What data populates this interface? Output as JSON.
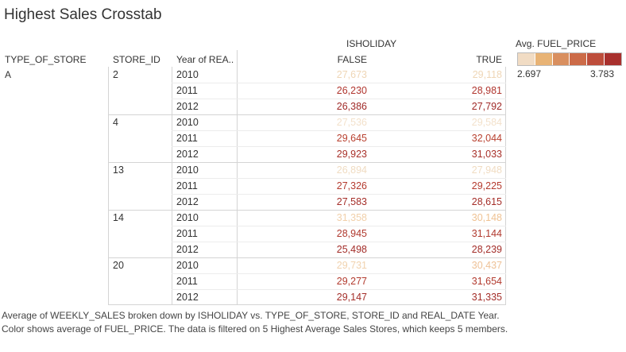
{
  "title": "Highest Sales Crosstab",
  "column_group_header": "ISHOLIDAY",
  "row_headers": [
    "TYPE_OF_STORE",
    "STORE_ID",
    "Year of REA.."
  ],
  "value_columns": [
    "FALSE",
    "TRUE"
  ],
  "legend": {
    "title": "Avg. FUEL_PRICE",
    "min_label": "2.697",
    "max_label": "3.783",
    "colors": [
      "#f1dcc4",
      "#e8b375",
      "#d98f5f",
      "#cc6b48",
      "#bd4d3b",
      "#a8302d"
    ]
  },
  "caption": "Average of WEEKLY_SALES broken down by ISHOLIDAY vs. TYPE_OF_STORE, STORE_ID and REAL_DATE Year. Color shows average of FUEL_PRICE. The data is filtered on 5 Highest Average Sales Stores, which keeps 5 members.",
  "chart_data": {
    "type": "table",
    "type_of_store": "A",
    "columns": [
      "FALSE",
      "TRUE"
    ],
    "stores": [
      {
        "store_id": "2",
        "rows": [
          {
            "year": "2010",
            "false": "27,673",
            "true": "29,118",
            "false_color": "#efd6b6",
            "true_color": "#efd6b6"
          },
          {
            "year": "2011",
            "false": "26,230",
            "true": "28,981",
            "false_color": "#b0352e",
            "true_color": "#b0352e"
          },
          {
            "year": "2012",
            "false": "26,386",
            "true": "27,792",
            "false_color": "#a02a28",
            "true_color": "#a02a28"
          }
        ]
      },
      {
        "store_id": "4",
        "rows": [
          {
            "year": "2010",
            "false": "27,536",
            "true": "29,584",
            "false_color": "#f3e1cb",
            "true_color": "#f3e1cb"
          },
          {
            "year": "2011",
            "false": "29,645",
            "true": "32,044",
            "false_color": "#b8402f",
            "true_color": "#b8402f"
          },
          {
            "year": "2012",
            "false": "29,923",
            "true": "31,033",
            "false_color": "#a83029",
            "true_color": "#a83029"
          }
        ]
      },
      {
        "store_id": "13",
        "rows": [
          {
            "year": "2010",
            "false": "26,894",
            "true": "27,948",
            "false_color": "#f0dcc2",
            "true_color": "#f0dcc2"
          },
          {
            "year": "2011",
            "false": "27,326",
            "true": "29,225",
            "false_color": "#b43a2e",
            "true_color": "#b43a2e"
          },
          {
            "year": "2012",
            "false": "27,583",
            "true": "28,615",
            "false_color": "#a52e29",
            "true_color": "#a52e29"
          }
        ]
      },
      {
        "store_id": "14",
        "rows": [
          {
            "year": "2010",
            "false": "31,358",
            "true": "30,148",
            "false_color": "#f1d0aa",
            "true_color": "#efc293"
          },
          {
            "year": "2011",
            "false": "28,945",
            "true": "31,144",
            "false_color": "#b0392e",
            "true_color": "#b0392e"
          },
          {
            "year": "2012",
            "false": "25,498",
            "true": "28,239",
            "false_color": "#a32d29",
            "true_color": "#a32d29"
          }
        ]
      },
      {
        "store_id": "20",
        "rows": [
          {
            "year": "2010",
            "false": "29,731",
            "true": "30,437",
            "false_color": "#f1d2ae",
            "true_color": "#eec196"
          },
          {
            "year": "2011",
            "false": "29,277",
            "true": "31,654",
            "false_color": "#b23a2e",
            "true_color": "#b23a2e"
          },
          {
            "year": "2012",
            "false": "29,147",
            "true": "31,335",
            "false_color": "#a42e29",
            "true_color": "#a42e29"
          }
        ]
      }
    ]
  }
}
